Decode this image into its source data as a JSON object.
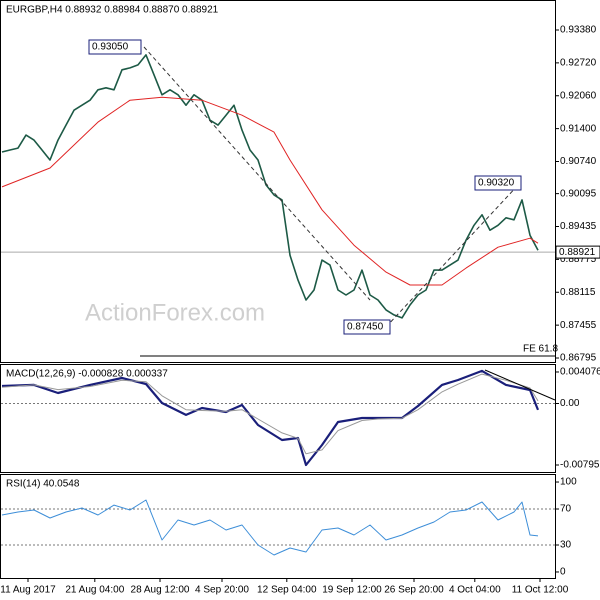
{
  "chart_data": [
    {
      "type": "line",
      "title": "EURGBP,H4  0.88932 0.88984 0.88870 0.88921",
      "watermark": "ActionForex.com",
      "annotations": [
        "0.93050",
        "0.90320",
        "0.87450",
        "FE 61.8"
      ],
      "last_price": 0.88921,
      "ylim": [
        0.86715,
        0.93942
      ],
      "yticks": [
        {
          "value": 0.9338,
          "label": "0.93380"
        },
        {
          "value": 0.9272,
          "label": "0.92720"
        },
        {
          "value": 0.9206,
          "label": "0.92060"
        },
        {
          "value": 0.914,
          "label": "0.91400"
        },
        {
          "value": 0.9074,
          "label": "0.90740"
        },
        {
          "value": 0.90095,
          "label": "0.90095"
        },
        {
          "value": 0.89435,
          "label": "0.89435"
        },
        {
          "value": 0.88775,
          "label": "0.88775"
        },
        {
          "value": 0.88115,
          "label": "0.88115"
        },
        {
          "value": 0.87455,
          "label": "0.87455"
        },
        {
          "value": 0.86795,
          "label": "0.86795"
        }
      ],
      "xlim": [
        0,
        69
      ],
      "xticks": [
        {
          "value": 3.25,
          "label": "11 Aug 2017"
        },
        {
          "value": 11.6,
          "label": "21 Aug 04:00"
        },
        {
          "value": 19.75,
          "label": "28 Aug 12:00"
        },
        {
          "value": 27.5,
          "label": "4 Sep 20:00"
        },
        {
          "value": 35.6,
          "label": "12 Sep 04:00"
        },
        {
          "value": 43.75,
          "label": "19 Sep 12:00"
        },
        {
          "value": 51.5,
          "label": "26 Sep 20:00"
        },
        {
          "value": 59.1,
          "label": "4 Oct 04:00"
        },
        {
          "value": 67.25,
          "label": "11 Oct 12:00"
        }
      ],
      "grid": false,
      "series": [
        {
          "name": "EURGBP",
          "color": "#1d5a46",
          "width": 1.6,
          "x": [
            0,
            1,
            2,
            3,
            4,
            5,
            6,
            7,
            8,
            9,
            10,
            11,
            12,
            13,
            14,
            15,
            16,
            17,
            18,
            19,
            20,
            21,
            22,
            23,
            24,
            25,
            26,
            27,
            28,
            29,
            30,
            31,
            32,
            33,
            34,
            35,
            36,
            37,
            38,
            39,
            40,
            41,
            42,
            43,
            44,
            45,
            46,
            47,
            48,
            49,
            50,
            51,
            52,
            53,
            54,
            55,
            56,
            57,
            58,
            59,
            60,
            61,
            62,
            63,
            64,
            65,
            66,
            67
          ],
          "values": [
            0.9093,
            0.9097,
            0.9101,
            0.9127,
            0.9117,
            0.9097,
            0.9077,
            0.9117,
            0.9147,
            0.9177,
            0.9187,
            0.9197,
            0.9218,
            0.9222,
            0.9218,
            0.9258,
            0.9262,
            0.9268,
            0.9288,
            0.9248,
            0.9208,
            0.9218,
            0.9208,
            0.9187,
            0.9208,
            0.9197,
            0.9157,
            0.9147,
            0.9167,
            0.9187,
            0.9137,
            0.9097,
            0.9077,
            0.9027,
            0.9007,
            0.8997,
            0.8886,
            0.8836,
            0.8796,
            0.8816,
            0.8876,
            0.8866,
            0.8816,
            0.8806,
            0.8816,
            0.8856,
            0.8806,
            0.8796,
            0.8776,
            0.8766,
            0.876,
            0.8786,
            0.8806,
            0.8816,
            0.8856,
            0.8856,
            0.8866,
            0.8876,
            0.8916,
            0.8946,
            0.8967,
            0.8936,
            0.8946,
            0.8961,
            0.8957,
            0.8997,
            0.8926,
            0.8896
          ]
        },
        {
          "name": "MA",
          "color": "#e02424",
          "width": 1,
          "x": [
            0,
            6,
            12,
            16,
            20,
            25,
            30,
            34,
            36,
            40,
            44,
            48,
            51,
            55,
            58,
            62,
            66,
            67
          ],
          "values": [
            0.9023,
            0.9061,
            0.9153,
            0.9197,
            0.9203,
            0.9197,
            0.9167,
            0.9133,
            0.9077,
            0.8977,
            0.8906,
            0.8852,
            0.8826,
            0.8826,
            0.886,
            0.8902,
            0.892,
            0.891
          ]
        }
      ]
    },
    {
      "type": "line",
      "title": "MACD(12,26,9) -0.000828 0.000337",
      "ylim": [
        -0.00886,
        0.00485
      ],
      "yticks": [
        0.004076,
        {
          "value": 0,
          "label": "0.00"
        },
        -0.007956
      ],
      "xlim": [
        0,
        69
      ],
      "grid": "dotted",
      "series": [
        {
          "name": "MACD",
          "color": "#1a1f7a",
          "width": 2.2,
          "x": [
            0,
            4,
            7,
            11,
            15,
            18,
            20,
            23,
            25,
            28,
            30,
            32,
            35,
            37,
            38,
            40,
            42,
            45,
            47,
            50,
            52,
            55,
            57,
            60,
            63,
            66,
            67
          ],
          "values": [
            0.00226,
            0.0024,
            0.00136,
            0.0024,
            0.0033,
            0.00252,
            7e-05,
            -0.00148,
            -0.00058,
            -0.0011,
            -0.00019,
            -0.00278,
            -0.00472,
            -0.00446,
            -0.00795,
            -0.00537,
            -0.00239,
            -0.00187,
            -0.00187,
            -0.00187,
            -0.00032,
            0.0024,
            0.00304,
            0.00421,
            0.0024,
            0.00175,
            -0.00083
          ]
        },
        {
          "name": "Signal",
          "color": "#999999",
          "width": 1,
          "x": [
            0,
            4,
            7,
            11,
            15,
            18,
            20,
            23,
            25,
            28,
            30,
            32,
            35,
            37,
            38,
            40,
            42,
            45,
            47,
            50,
            52,
            55,
            57,
            60,
            63,
            66,
            67
          ],
          "values": [
            0.0021,
            0.0024,
            0.0018,
            0.0022,
            0.003,
            0.0028,
            0.001,
            -0.0008,
            -0.0009,
            -0.001,
            -0.0008,
            -0.002,
            -0.0038,
            -0.0045,
            -0.0065,
            -0.006,
            -0.0035,
            -0.0022,
            -0.002,
            -0.0019,
            -0.0008,
            0.0015,
            0.0025,
            0.0038,
            0.003,
            0.002,
            0.00034
          ]
        }
      ]
    },
    {
      "type": "line",
      "title": "RSI(14) 40.0548",
      "ylim": [
        -6.7,
        106.7
      ],
      "yticks": [
        100,
        70,
        30,
        0
      ],
      "xlim": [
        0,
        69
      ],
      "grid": "dotted",
      "series": [
        {
          "name": "RSI",
          "color": "#3d8ed8",
          "width": 1,
          "x": [
            0,
            2,
            4,
            6,
            8,
            10,
            12,
            14,
            16,
            18,
            20,
            22,
            24,
            26,
            28,
            30,
            32,
            34,
            36,
            38,
            40,
            42,
            44,
            46,
            48,
            50,
            52,
            54,
            56,
            58,
            60,
            62,
            64,
            65,
            66,
            67
          ],
          "values": [
            63.3,
            66.7,
            68.9,
            60,
            66.7,
            71.1,
            63.3,
            74.4,
            68.9,
            80,
            35.6,
            57.8,
            52.2,
            57.8,
            46.7,
            52.2,
            30,
            18.9,
            26.7,
            22.2,
            46.7,
            48.9,
            41.1,
            52.2,
            35.6,
            41.1,
            48.9,
            55.6,
            66.7,
            68.9,
            77.8,
            57.8,
            66.7,
            77.8,
            41.1,
            40.05
          ]
        }
      ]
    }
  ]
}
